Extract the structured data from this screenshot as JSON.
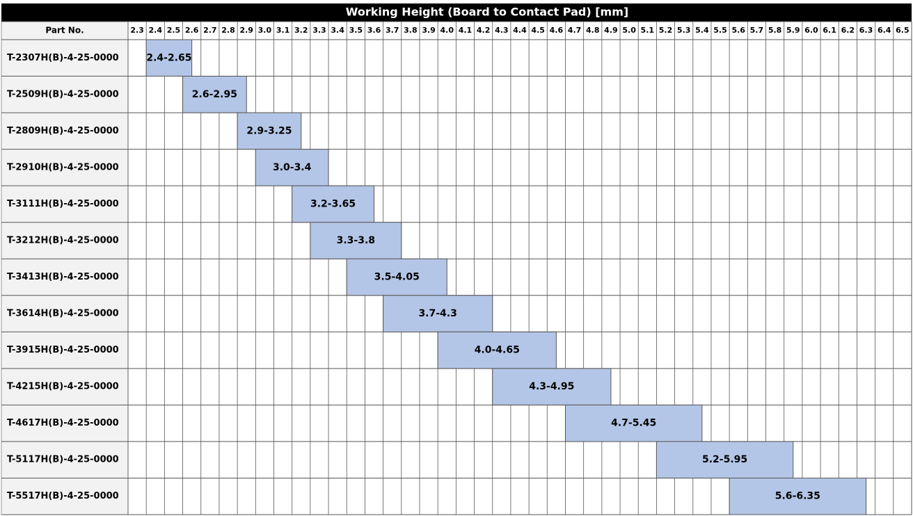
{
  "chart_data": {
    "type": "range-bar",
    "x_label": "Working Height (Board to Contact Pad) [mm]",
    "y_label": "Part No.",
    "categories": [
      "T-2307H(B)-4-25-0000",
      "T-2509H(B)-4-25-0000",
      "T-2809H(B)-4-25-0000",
      "T-2910H(B)-4-25-0000",
      "T-3111H(B)-4-25-0000",
      "T-3212H(B)-4-25-0000",
      "T-3413H(B)-4-25-0000",
      "T-3614H(B)-4-25-0000",
      "T-3915H(B)-4-25-0000",
      "T-4215H(B)-4-25-0000",
      "T-4617H(B)-4-25-0000",
      "T-5117H(B)-4-25-0000",
      "T-5517H(B)-4-25-0000"
    ],
    "low": [
      2.4,
      2.6,
      2.9,
      3.0,
      3.2,
      3.3,
      3.5,
      3.7,
      4.0,
      4.3,
      4.7,
      5.2,
      5.6
    ],
    "high": [
      2.65,
      2.95,
      3.25,
      3.4,
      3.65,
      3.8,
      4.05,
      4.3,
      4.65,
      4.95,
      5.45,
      5.95,
      6.35
    ],
    "value_labels": [
      "2.4-2.65",
      "2.6-2.95",
      "2.9-3.25",
      "3.0-3.4",
      "3.2-3.65",
      "3.3-3.8",
      "3.5-4.05",
      "3.7-4.3",
      "4.0-4.65",
      "4.3-4.95",
      "4.7-5.45",
      "5.2-5.95",
      "5.6-6.35"
    ],
    "color": "#b4c6e7",
    "xlim": [
      2.3,
      6.6
    ],
    "xticks": [
      2.3,
      2.4,
      2.5,
      2.6,
      2.7,
      2.8,
      2.9,
      {
        "value": 3,
        "label": "3.0"
      },
      3.1,
      3.2,
      3.3,
      3.4,
      3.5,
      3.6,
      3.7,
      3.8,
      3.9,
      {
        "value": 4,
        "label": "4.0"
      },
      4.1,
      4.2,
      4.3,
      4.4,
      4.5,
      4.6,
      4.7,
      4.8,
      4.9,
      {
        "value": 5,
        "label": "5.0"
      },
      5.1,
      5.2,
      5.3,
      5.4,
      5.5,
      5.6,
      5.7,
      5.8,
      5.9,
      {
        "value": 6,
        "label": "6.0"
      },
      6.1,
      6.2,
      6.3,
      6.4,
      6.5
    ],
    "grid": true
  }
}
